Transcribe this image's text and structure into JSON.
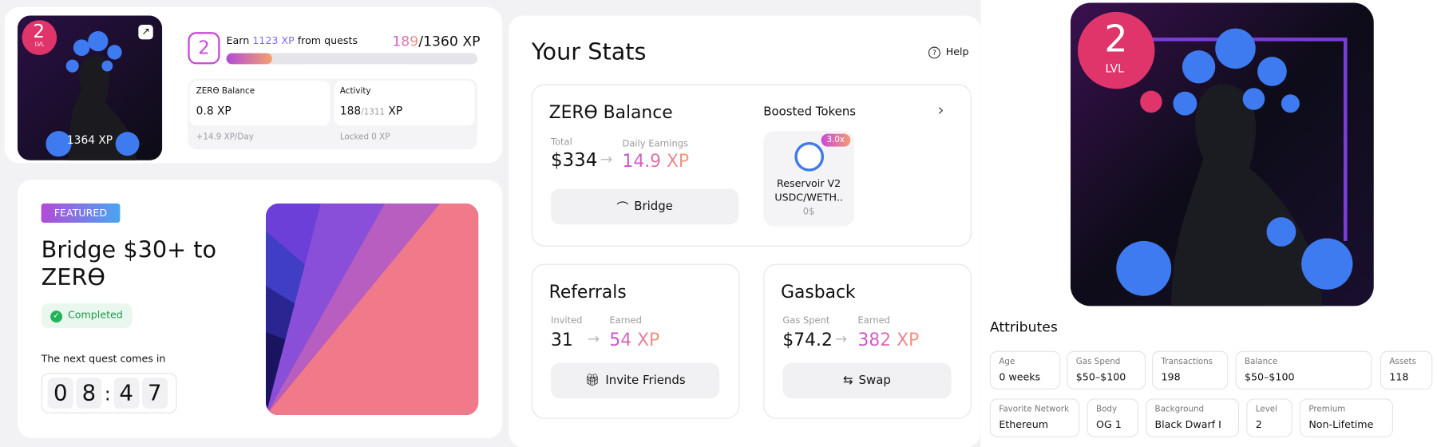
{
  "profile": {
    "level": "2",
    "level_label": "LVL",
    "xp": "1364 XP"
  },
  "quest": {
    "earn_prefix": "Earn",
    "earn_xp": "1123 XP",
    "earn_suffix": "from quests",
    "level": "2",
    "current": "189",
    "total": "/1360 XP"
  },
  "balance_card": {
    "label": "ZERϴ Balance",
    "value": "0.8 XP",
    "footer": "+14.9 XP/Day"
  },
  "activity_card": {
    "label": "Activity",
    "value_main": "188",
    "value_sub": "/1311",
    "value_unit": "XP",
    "footer": "Locked 0 XP"
  },
  "featured": {
    "badge": "FEATURED",
    "title": "Bridge $30+ to ZERϴ",
    "status": "Completed",
    "next_label": "The next quest comes in",
    "timer": [
      "0",
      "8",
      "4",
      "7"
    ]
  },
  "stats": {
    "title": "Your Stats",
    "help": "Help",
    "zero_balance": {
      "title": "ZERϴ Balance",
      "total_label": "Total",
      "total": "$334",
      "daily_label": "Daily Earnings",
      "daily": "14.9 XP",
      "button": "Bridge"
    },
    "boosted": {
      "title": "Boosted Tokens",
      "multiplier": "3.0x",
      "name": "Reservoir V2 USDC/WETH..",
      "amount": "0$"
    },
    "referrals": {
      "title": "Referrals",
      "invited_label": "Invited",
      "invited": "31",
      "earned_label": "Earned",
      "earned": "54 XP",
      "button": "Invite Friends"
    },
    "gasback": {
      "title": "Gasback",
      "spent_label": "Gas Spent",
      "spent": "$74.2",
      "earned_label": "Earned",
      "earned": "382 XP",
      "button": "Swap"
    }
  },
  "nft": {
    "level": "2",
    "level_label": "LVL"
  },
  "attributes": {
    "title": "Attributes",
    "items": [
      {
        "label": "Age",
        "value": "0 weeks"
      },
      {
        "label": "Gas Spend",
        "value": "$50–$100"
      },
      {
        "label": "Transactions",
        "value": "198"
      },
      {
        "label": "Balance",
        "value": "$50–$100"
      },
      {
        "label": "Assets",
        "value": "118"
      },
      {
        "label": "Favorite Network",
        "value": "Ethereum"
      },
      {
        "label": "Body",
        "value": "OG 1"
      },
      {
        "label": "Background",
        "value": "Black Dwarf I"
      },
      {
        "label": "Level",
        "value": "2"
      },
      {
        "label": "Premium",
        "value": "Non-Lifetime"
      }
    ]
  }
}
